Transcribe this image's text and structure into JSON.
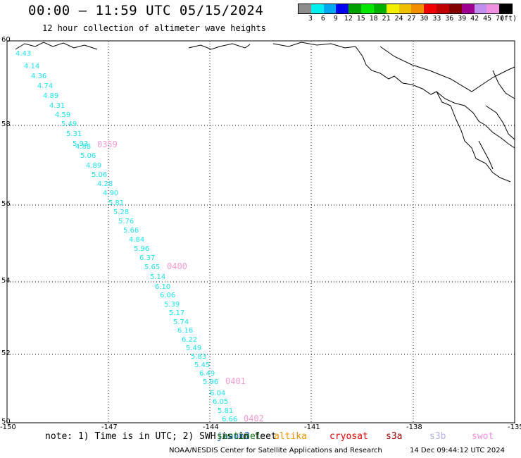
{
  "header": {
    "title": "00:00 – 11:59 UTC 05/15/2024",
    "subtitle": "12 hour collection of altimeter wave heights"
  },
  "colorbar": {
    "colors": [
      "#8c8c8c",
      "#00f0f0",
      "#00a8f0",
      "#0000f0",
      "#00a000",
      "#00e800",
      "#00b000",
      "#f0f000",
      "#f0c000",
      "#f09000",
      "#f00000",
      "#c00000",
      "#800000",
      "#a00090",
      "#c090f0",
      "#f090e0",
      "#000000"
    ],
    "labels": [
      "3",
      "6",
      "9",
      "12",
      "15",
      "18",
      "21",
      "24",
      "27",
      "30",
      "33",
      "36",
      "39",
      "42",
      "45",
      "70",
      "(ft)"
    ]
  },
  "map": {
    "lon_ticks": [
      "-150",
      "-147",
      "-144",
      "-141",
      "-138",
      "-135"
    ],
    "lat_ticks": [
      "60",
      "58",
      "56",
      "54",
      "52",
      "50"
    ],
    "wave_heights": [
      "4.43",
      "4.14",
      "4.36",
      "4.74",
      "4.89",
      "4.31",
      "4.59",
      "5.49",
      "5.31",
      "5.93",
      "4.88",
      "5.06",
      "4.89",
      "5.06",
      "4.28",
      "4.90",
      "5.81",
      "5.28",
      "5.76",
      "5.66",
      "4.84",
      "5.96",
      "6.37",
      "5.65",
      "5.14",
      "6.10",
      "6.06",
      "5.39",
      "5.17",
      "5.74",
      "6.16",
      "6.22",
      "5.49",
      "5.83",
      "5.45",
      "6.49",
      "5.96",
      "6.04",
      "6.05",
      "5.81",
      "6.66"
    ],
    "time_labels": [
      "0359",
      "0400",
      "0401",
      "0402"
    ]
  },
  "note": "note: 1) Time is in UTC; 2) SWH is in feet",
  "satellites": [
    {
      "name": "jason3",
      "color": "#1060d0"
    },
    {
      "name": "sentinel",
      "color": "#107010"
    },
    {
      "name": "altika",
      "color": "#f09000"
    },
    {
      "name": "cryosat",
      "color": "#e00000"
    },
    {
      "name": "s3a",
      "color": "#a00000"
    },
    {
      "name": "s3b",
      "color": "#b0b0e0"
    },
    {
      "name": "swot",
      "color": "#f090e0"
    }
  ],
  "footer": {
    "credit": "NOAA/NESDIS Center for Satellite Applications and Research",
    "timestamp": "14 Dec 09:44:12 UTC 2024"
  }
}
